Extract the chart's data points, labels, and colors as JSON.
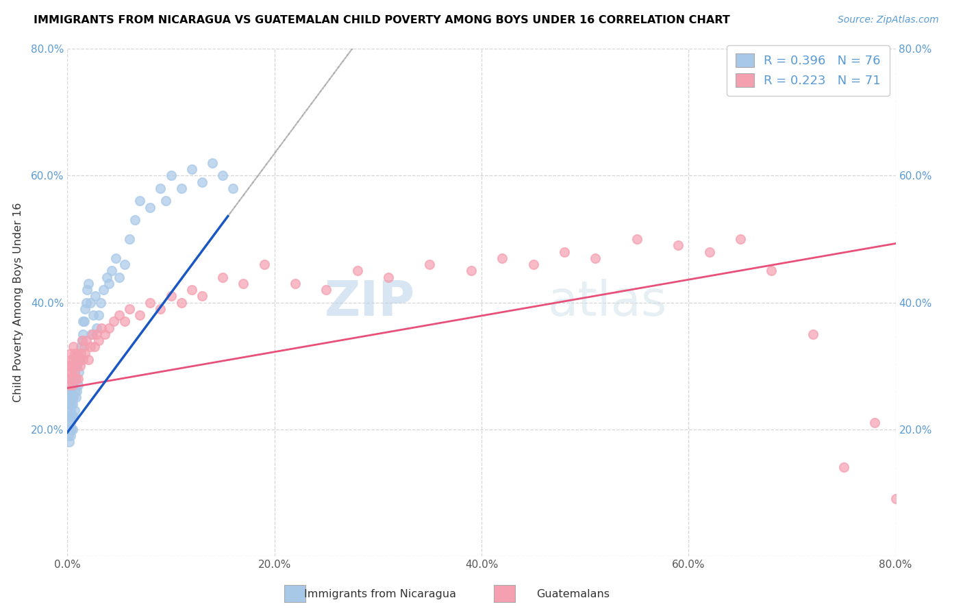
{
  "title": "IMMIGRANTS FROM NICARAGUA VS GUATEMALAN CHILD POVERTY AMONG BOYS UNDER 16 CORRELATION CHART",
  "source": "Source: ZipAtlas.com",
  "ylabel": "Child Poverty Among Boys Under 16",
  "xlim": [
    0.0,
    0.8
  ],
  "ylim": [
    0.0,
    0.8
  ],
  "xtick_vals": [
    0.0,
    0.2,
    0.4,
    0.6,
    0.8
  ],
  "xtick_labels": [
    "0.0%",
    "20.0%",
    "40.0%",
    "60.0%",
    "80.0%"
  ],
  "ytick_vals": [
    0.0,
    0.2,
    0.4,
    0.6,
    0.8
  ],
  "ytick_labels": [
    "",
    "20.0%",
    "40.0%",
    "60.0%",
    "80.0%"
  ],
  "legend_label1": "Immigrants from Nicaragua",
  "legend_label2": "Guatemalans",
  "R1": 0.396,
  "N1": 76,
  "R2": 0.223,
  "N2": 71,
  "color_blue": "#a8c8e8",
  "color_pink": "#f4a0b0",
  "trendline_color_blue": "#1a56c4",
  "trendline_color_pink": "#e8507a",
  "tick_color": "#5b9bd5",
  "watermark_color": "#c8dff0",
  "blue_intercept": 0.195,
  "blue_slope": 2.2,
  "pink_intercept": 0.265,
  "pink_slope": 0.285,
  "blue_trendline_xmax": 0.155,
  "dashed_line_x": [
    0.0,
    0.8
  ],
  "dashed_line_y": [
    0.0,
    0.8
  ],
  "blue_x": [
    0.001,
    0.001,
    0.001,
    0.001,
    0.002,
    0.002,
    0.002,
    0.002,
    0.002,
    0.002,
    0.003,
    0.003,
    0.003,
    0.003,
    0.003,
    0.003,
    0.003,
    0.004,
    0.004,
    0.004,
    0.004,
    0.005,
    0.005,
    0.005,
    0.005,
    0.005,
    0.006,
    0.006,
    0.006,
    0.007,
    0.007,
    0.007,
    0.008,
    0.008,
    0.009,
    0.009,
    0.01,
    0.01,
    0.011,
    0.012,
    0.013,
    0.014,
    0.015,
    0.015,
    0.016,
    0.017,
    0.018,
    0.019,
    0.02,
    0.022,
    0.023,
    0.025,
    0.027,
    0.028,
    0.03,
    0.032,
    0.035,
    0.038,
    0.04,
    0.043,
    0.047,
    0.05,
    0.055,
    0.06,
    0.065,
    0.07,
    0.08,
    0.09,
    0.095,
    0.1,
    0.11,
    0.12,
    0.13,
    0.14,
    0.15,
    0.16
  ],
  "blue_y": [
    0.19,
    0.21,
    0.22,
    0.24,
    0.18,
    0.2,
    0.22,
    0.23,
    0.25,
    0.26,
    0.19,
    0.21,
    0.22,
    0.23,
    0.24,
    0.25,
    0.26,
    0.2,
    0.22,
    0.24,
    0.26,
    0.2,
    0.22,
    0.24,
    0.25,
    0.27,
    0.22,
    0.25,
    0.28,
    0.23,
    0.26,
    0.29,
    0.25,
    0.28,
    0.26,
    0.3,
    0.27,
    0.31,
    0.29,
    0.31,
    0.33,
    0.34,
    0.35,
    0.37,
    0.37,
    0.39,
    0.4,
    0.42,
    0.43,
    0.4,
    0.35,
    0.38,
    0.41,
    0.36,
    0.38,
    0.4,
    0.42,
    0.44,
    0.43,
    0.45,
    0.47,
    0.44,
    0.46,
    0.5,
    0.53,
    0.56,
    0.55,
    0.58,
    0.56,
    0.6,
    0.58,
    0.61,
    0.59,
    0.62,
    0.6,
    0.58
  ],
  "pink_x": [
    0.001,
    0.001,
    0.002,
    0.002,
    0.003,
    0.003,
    0.003,
    0.004,
    0.004,
    0.005,
    0.005,
    0.006,
    0.006,
    0.007,
    0.007,
    0.008,
    0.008,
    0.009,
    0.009,
    0.01,
    0.01,
    0.011,
    0.012,
    0.013,
    0.014,
    0.015,
    0.016,
    0.017,
    0.018,
    0.02,
    0.022,
    0.024,
    0.026,
    0.028,
    0.03,
    0.033,
    0.036,
    0.04,
    0.045,
    0.05,
    0.055,
    0.06,
    0.07,
    0.08,
    0.09,
    0.1,
    0.11,
    0.12,
    0.13,
    0.15,
    0.17,
    0.19,
    0.22,
    0.25,
    0.28,
    0.31,
    0.35,
    0.39,
    0.42,
    0.45,
    0.48,
    0.51,
    0.55,
    0.59,
    0.62,
    0.65,
    0.68,
    0.72,
    0.75,
    0.78,
    0.8
  ],
  "pink_y": [
    0.28,
    0.3,
    0.27,
    0.29,
    0.28,
    0.3,
    0.32,
    0.29,
    0.31,
    0.27,
    0.3,
    0.31,
    0.33,
    0.29,
    0.32,
    0.28,
    0.31,
    0.3,
    0.32,
    0.28,
    0.32,
    0.31,
    0.3,
    0.32,
    0.34,
    0.31,
    0.33,
    0.32,
    0.34,
    0.31,
    0.33,
    0.35,
    0.33,
    0.35,
    0.34,
    0.36,
    0.35,
    0.36,
    0.37,
    0.38,
    0.37,
    0.39,
    0.38,
    0.4,
    0.39,
    0.41,
    0.4,
    0.42,
    0.41,
    0.44,
    0.43,
    0.46,
    0.43,
    0.42,
    0.45,
    0.44,
    0.46,
    0.45,
    0.47,
    0.46,
    0.48,
    0.47,
    0.5,
    0.49,
    0.48,
    0.5,
    0.45,
    0.35,
    0.14,
    0.21,
    0.09
  ]
}
